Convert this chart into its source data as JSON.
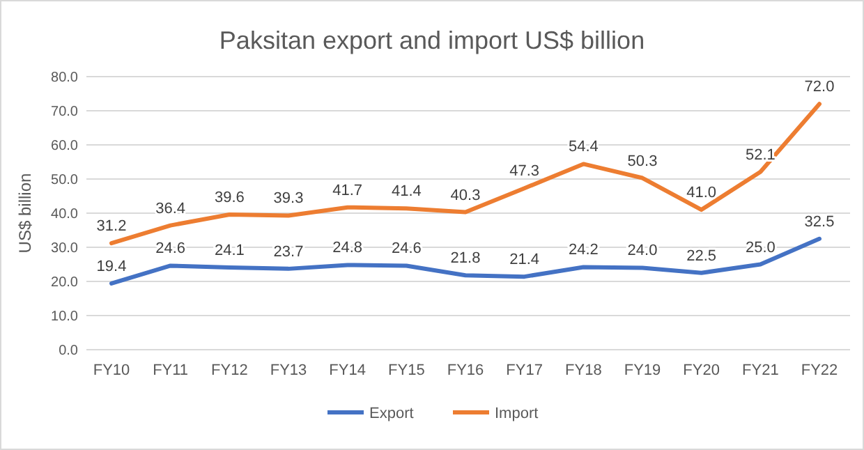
{
  "chart_data": {
    "type": "line",
    "title": "Paksitan export and import US$ billion",
    "ylabel": "US$ billion",
    "categories": [
      "FY10",
      "FY11",
      "FY12",
      "FY13",
      "FY14",
      "FY15",
      "FY16",
      "FY17",
      "FY18",
      "FY19",
      "FY20",
      "FY21",
      "FY22"
    ],
    "series": [
      {
        "name": "Export",
        "color": "#4472c4",
        "values": [
          19.4,
          24.6,
          24.1,
          23.7,
          24.8,
          24.6,
          21.8,
          21.4,
          24.2,
          24.0,
          22.5,
          25.0,
          32.5
        ],
        "value_labels": [
          "19.4",
          "24.6",
          "24.1",
          "23.7",
          "24.8",
          "24.6",
          "21.8",
          "21.4",
          "24.2",
          "24.0",
          "22.5",
          "25.0",
          "32.5"
        ]
      },
      {
        "name": "Import",
        "color": "#ed7d31",
        "values": [
          31.2,
          36.4,
          39.6,
          39.3,
          41.7,
          41.4,
          40.3,
          47.3,
          54.4,
          50.3,
          41.0,
          52.1,
          72.0
        ],
        "value_labels": [
          "31.2",
          "36.4",
          "39.6",
          "39.3",
          "41.7",
          "41.4",
          "40.3",
          "47.3",
          "54.4",
          "50.3",
          "41.0",
          "52.1",
          "72.0"
        ]
      }
    ],
    "ylim": [
      0,
      80
    ],
    "yticks": [
      {
        "value": 0,
        "label": "0.0"
      },
      {
        "value": 10,
        "label": "10.0"
      },
      {
        "value": 20,
        "label": "20.0"
      },
      {
        "value": 30,
        "label": "30.0"
      },
      {
        "value": 40,
        "label": "40.0"
      },
      {
        "value": 50,
        "label": "50.0"
      },
      {
        "value": 60,
        "label": "60.0"
      },
      {
        "value": 70,
        "label": "70.0"
      },
      {
        "value": 80,
        "label": "80.0"
      }
    ],
    "grid": "y",
    "legend": "bottom",
    "marker": "none",
    "line_style": "solid"
  }
}
